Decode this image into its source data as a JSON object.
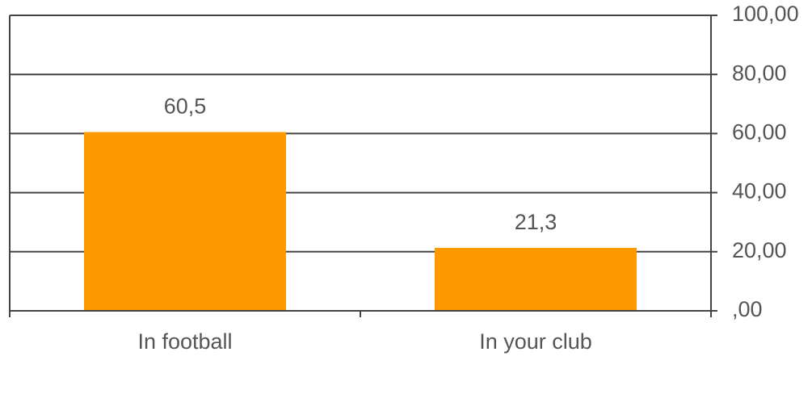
{
  "chart_data": {
    "type": "bar",
    "categories": [
      "In football",
      "In your club"
    ],
    "values": [
      60.5,
      21.3
    ],
    "value_labels": [
      "60,5",
      "21,3"
    ],
    "color": "#ff9900",
    "ylim": [
      0,
      100
    ],
    "yticks": [
      {
        "value": 0,
        "label": ",00"
      },
      {
        "value": 20,
        "label": "20,00"
      },
      {
        "value": 40,
        "label": "40,00"
      },
      {
        "value": 60,
        "label": "60,00"
      },
      {
        "value": 80,
        "label": "80,00"
      },
      {
        "value": 100,
        "label": "100,00"
      }
    ],
    "grid": true,
    "y_axis_side": "right"
  }
}
